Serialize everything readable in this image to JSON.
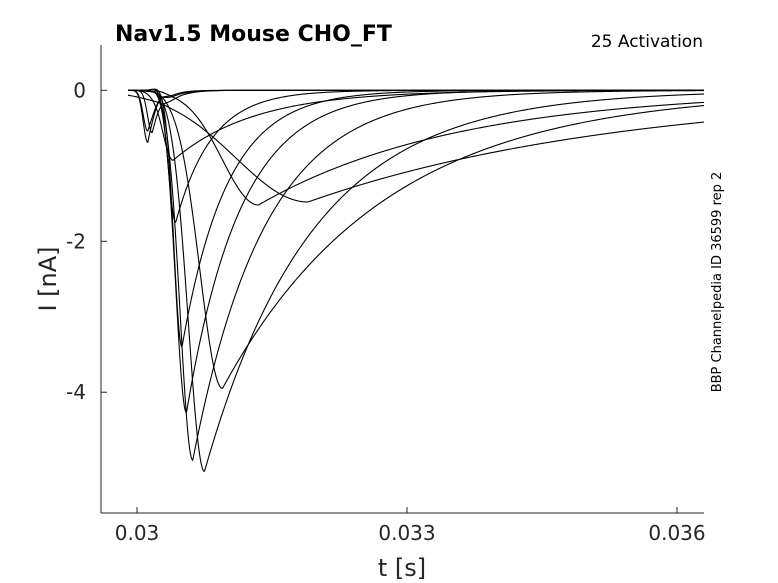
{
  "chart_data": {
    "type": "line",
    "title": "Nav1.5  Mouse  CHO_FT",
    "annotation": "25  Activation",
    "side_label": "BBP Channelpedia ID 36599 rep 2",
    "xlabel": "t [s]",
    "ylabel": "I [nA]",
    "xlim": [
      0.0296,
      0.0363
    ],
    "ylim": [
      -5.6,
      0.6
    ],
    "xticks": [
      0.03,
      0.033,
      0.036
    ],
    "xtick_labels": [
      "0.03",
      "0.033",
      "0.036"
    ],
    "yticks": [
      0,
      -2,
      -4
    ],
    "ytick_labels": [
      "0",
      "-2",
      "-4"
    ],
    "grid": false,
    "t0": 0.0299,
    "series": [
      {
        "peak": -0.55,
        "tpeak": 0.03012,
        "sigma": 5e-05,
        "tau": 0.00015,
        "osc": 0.1
      },
      {
        "peak": -0.7,
        "tpeak": 0.03012,
        "sigma": 5e-05,
        "tau": 0.00012,
        "osc": 0.1
      },
      {
        "peak": -0.6,
        "tpeak": 0.03017,
        "sigma": 5e-05,
        "tau": 0.00015,
        "osc": 0.1
      },
      {
        "peak": -0.93,
        "tpeak": 0.0304,
        "sigma": 0.00012,
        "tau": 0.0009,
        "osc": 0.05
      },
      {
        "peak": -1.75,
        "tpeak": 0.03043,
        "sigma": 8e-05,
        "tau": 0.0004,
        "osc": 0.05
      },
      {
        "peak": -3.4,
        "tpeak": 0.0305,
        "sigma": 9e-05,
        "tau": 0.0005,
        "osc": 0.04
      },
      {
        "peak": -4.27,
        "tpeak": 0.03055,
        "sigma": 0.00012,
        "tau": 0.0006,
        "osc": 0.04
      },
      {
        "peak": -4.9,
        "tpeak": 0.03062,
        "sigma": 0.00014,
        "tau": 0.0008,
        "osc": 0.03
      },
      {
        "peak": -5.05,
        "tpeak": 0.03075,
        "sigma": 0.00018,
        "tau": 0.0012,
        "osc": 0.03
      },
      {
        "peak": -3.95,
        "tpeak": 0.03095,
        "sigma": 0.00025,
        "tau": 0.0018,
        "osc": 0.02
      },
      {
        "peak": -1.52,
        "tpeak": 0.03135,
        "sigma": 0.0004,
        "tau": 0.0022,
        "osc": 0.02
      },
      {
        "peak": -1.48,
        "tpeak": 0.0319,
        "sigma": 0.0008,
        "tau": 0.0035,
        "osc": 0.01
      }
    ]
  }
}
